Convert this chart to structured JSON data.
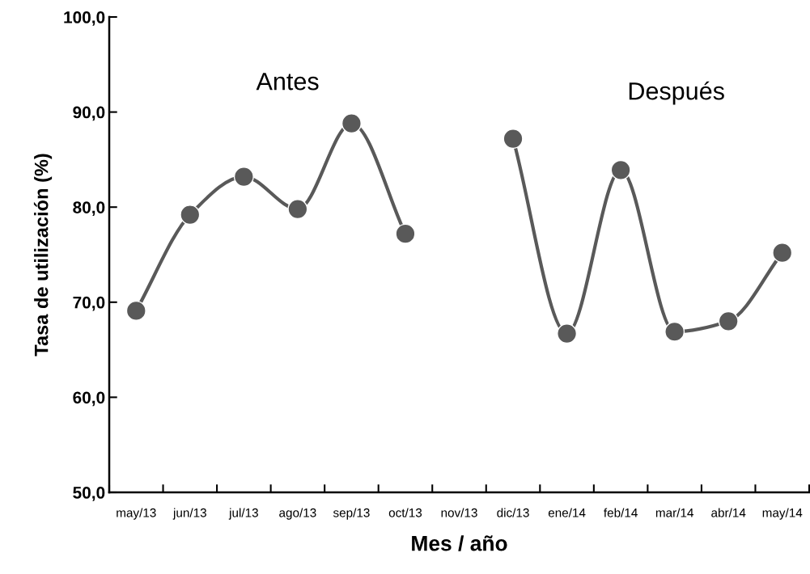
{
  "chart_data": {
    "type": "line",
    "xlabel": "Mes / año",
    "ylabel": "Tasa de utilización (%)",
    "categories": [
      "may/13",
      "jun/13",
      "jul/13",
      "ago/13",
      "sep/13",
      "oct/13",
      "nov/13",
      "dic/13",
      "ene/14",
      "feb/14",
      "mar/14",
      "abr/14",
      "may/14"
    ],
    "series": [
      {
        "color": "#595959",
        "values": [
          69.1,
          79.2,
          83.2,
          79.8,
          88.8,
          77.2,
          null,
          87.2,
          66.7,
          83.9,
          66.9,
          68.0,
          75.2
        ]
      }
    ],
    "ylim": [
      50,
      100
    ],
    "yticks": [
      {
        "value": 50,
        "label": "50,0"
      },
      {
        "value": 60,
        "label": "60,0"
      },
      {
        "value": 70,
        "label": "70,0"
      },
      {
        "value": 80,
        "label": "80,0"
      },
      {
        "value": 90,
        "label": "90,0"
      },
      {
        "value": 100,
        "label": "100,0"
      }
    ],
    "annotations": [
      "Antes",
      "Después"
    ],
    "marker": "circle",
    "line_style": "solid",
    "grid": false,
    "legend": false
  }
}
